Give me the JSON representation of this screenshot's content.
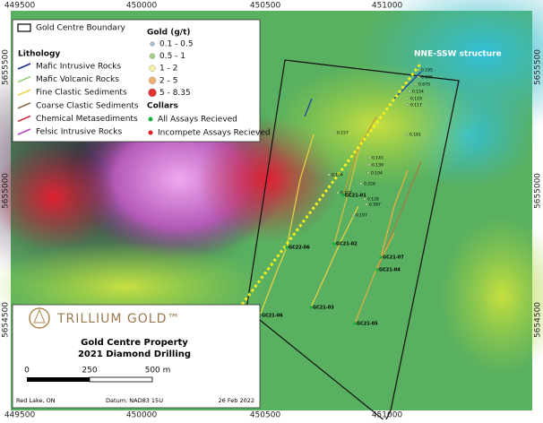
{
  "coordinates": {
    "top": [
      "449500",
      "450000",
      "450500",
      "451000"
    ],
    "bottom": [
      "449500",
      "450000",
      "450500",
      "451000"
    ],
    "left": [
      "5655500",
      "5655000",
      "5654500"
    ],
    "right": [
      "5655500",
      "5655000",
      "5654500"
    ]
  },
  "legend": {
    "boundary": "Gold Centre Boundary",
    "lithology_title": "Lithology",
    "lithology": [
      "Mafic Intrusive Rocks",
      "Mafic Volcanic Rocks",
      "Fine Clastic Sediments",
      "Coarse Clastic Sediments",
      "Chemical Metasediments",
      "Felsic Intrusive Rocks"
    ],
    "gold_title": "Gold (g/t)",
    "gold": [
      "0.1 - 0.5",
      "0.5 - 1",
      "1 - 2",
      "2 - 5",
      "5 - 8.35"
    ],
    "collars_title": "Collars",
    "collars": [
      "All Assays Recieved",
      "Incompete Assays Recieved"
    ]
  },
  "map": {
    "structure": "NNE-SSW structure",
    "holes": [
      "GC22-06",
      "GC21-02",
      "GC21-01",
      "GC21-07",
      "GC21-04",
      "GC21-03",
      "GC21-05",
      "GC21-06"
    ],
    "assays": [
      "0.195",
      "0.108",
      "0.679",
      "0.154",
      "0.119",
      "0.117",
      "0.157",
      "0.181",
      "0.143",
      "0.139",
      "0.104",
      "0.228",
      "0.128",
      "0.587",
      "0.197",
      "0.104",
      "0.107"
    ]
  },
  "title_block": {
    "logo": "TRILLIUM GOLD™",
    "title": "Gold Centre Property",
    "subtitle": "2021 Diamond Drilling",
    "scale": [
      "0",
      "250",
      "500 m"
    ],
    "footer": [
      "Red Lake, ON",
      "Datum: NAD83 15U",
      "26 Feb 2022"
    ]
  }
}
